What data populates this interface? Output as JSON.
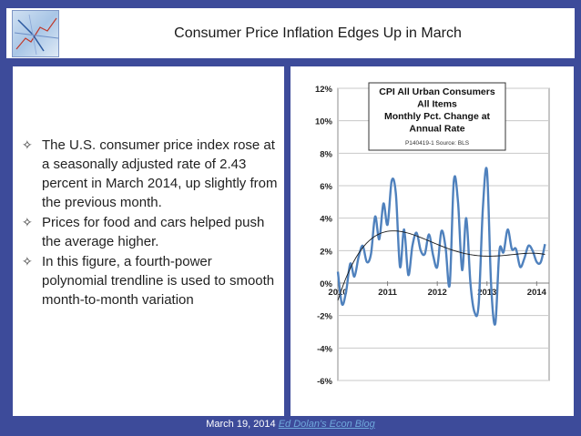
{
  "slide": {
    "title": "Consumer Price Inflation Edges Up in March",
    "bullets": [
      "The U.S. consumer price index rose at a seasonally adjusted rate of 2.43 percent in March 2014, up slightly from the previous month.",
      "Prices for food and cars helped push the average higher.",
      "In this figure, a fourth-power polynomial trendline is used to smooth month-to-month variation"
    ],
    "bullet_symbol": "✧",
    "footer": {
      "date": "March 19, 2014",
      "link": "Ed Dolan's Econ Blog"
    },
    "colors": {
      "background": "#3d4b9a",
      "series": "#4f81bd",
      "trend": "#1a1a1a"
    }
  },
  "chart_data": {
    "type": "line",
    "title_lines": [
      "CPI All Urban Consumers",
      "All Items",
      "Monthly Pct. Change at",
      "Annual Rate"
    ],
    "source": "P140419-1 Source: BLS",
    "ylim": [
      -6,
      12
    ],
    "yticks": [
      "12%",
      "10%",
      "8%",
      "6%",
      "4%",
      "2%",
      "0%",
      "-2%",
      "-4%",
      "-6%"
    ],
    "ytick_values": [
      12,
      10,
      8,
      6,
      4,
      2,
      0,
      -2,
      -4,
      -6
    ],
    "xticks": [
      "2010",
      "2011",
      "2012",
      "2013",
      "2014"
    ],
    "xlim": [
      2010.0,
      2014.25
    ],
    "grid": true,
    "series": [
      {
        "x": [
          2010.0,
          2010.083,
          2010.167,
          2010.25,
          2010.333,
          2010.417,
          2010.5,
          2010.583,
          2010.667,
          2010.75,
          2010.833,
          2010.917,
          2011.0,
          2011.083,
          2011.167,
          2011.25,
          2011.333,
          2011.417,
          2011.5,
          2011.583,
          2011.667,
          2011.75,
          2011.833,
          2011.917,
          2012.0,
          2012.083,
          2012.167,
          2012.25,
          2012.333,
          2012.417,
          2012.5,
          2012.583,
          2012.667,
          2012.75,
          2012.833,
          2012.917,
          2013.0,
          2013.083,
          2013.167,
          2013.25,
          2013.333,
          2013.417,
          2013.5,
          2013.583,
          2013.667,
          2013.75,
          2013.833,
          2013.917,
          2014.0,
          2014.083,
          2014.167
        ],
        "values": [
          0.7,
          -1.3,
          -0.5,
          1.2,
          0.4,
          1.6,
          2.3,
          1.3,
          1.8,
          4.1,
          2.7,
          4.9,
          3.6,
          6.3,
          5.5,
          1.0,
          3.3,
          0.5,
          2.3,
          3.1,
          2.0,
          1.8,
          3.0,
          1.7,
          1.0,
          3.2,
          2.2,
          -0.1,
          6.3,
          5.0,
          0.8,
          4.0,
          0.0,
          -1.8,
          -1.3,
          4.6,
          6.9,
          -0.1,
          -2.5,
          2.0,
          1.9,
          3.3,
          2.1,
          2.1,
          1.0,
          1.5,
          2.3,
          2.0,
          1.3,
          1.3,
          2.4
        ]
      }
    ]
  }
}
